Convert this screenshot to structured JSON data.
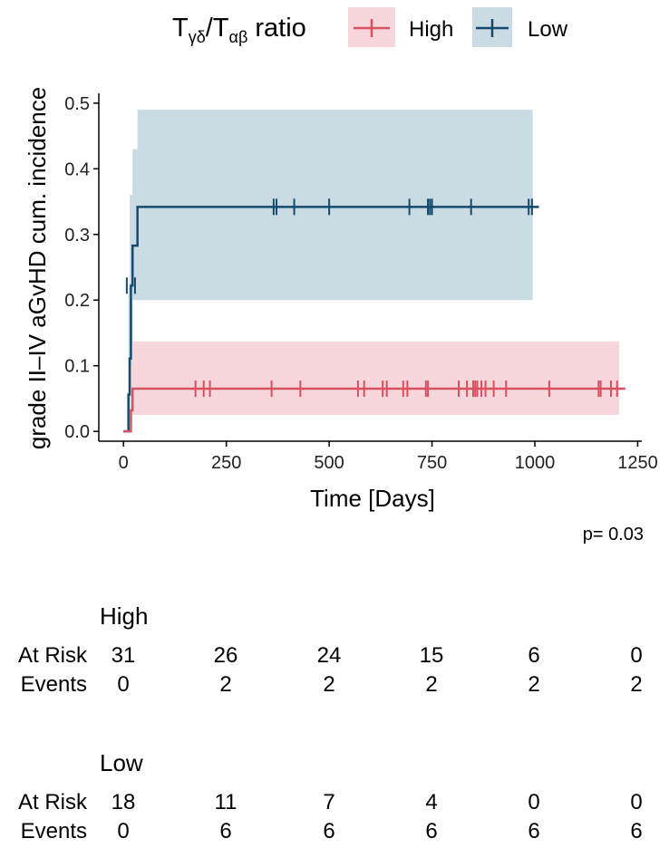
{
  "chart_data": {
    "type": "line",
    "subtype": "cumulative-incidence-step",
    "legend": {
      "title_main": "T",
      "title_sub1": "γδ",
      "title_slash": "/T",
      "title_sub2": "αβ",
      "title_tail": " ratio",
      "placement": "top",
      "entries": [
        "High",
        "Low"
      ]
    },
    "xlabel": "Time [Days]",
    "ylabel": "grade II–IV aGvHD cum. incidence",
    "xlim": [
      -60,
      1260
    ],
    "ylim": [
      -0.015,
      0.515
    ],
    "xticks": [
      0,
      250,
      500,
      750,
      1000,
      1250
    ],
    "yticks": [
      0.0,
      0.1,
      0.2,
      0.3,
      0.4,
      0.5
    ],
    "xtick_labels": [
      "0",
      "250",
      "500",
      "750",
      "1000",
      "1250"
    ],
    "ytick_labels": [
      "0.0",
      "0.1",
      "0.2",
      "0.3",
      "0.4",
      "0.5"
    ],
    "pvalue": "p= 0.03",
    "series": [
      {
        "name": "Low",
        "color": "#134b6e",
        "ci_color": "#cbdbe3",
        "x": [
          0,
          12,
          15,
          18,
          22,
          34,
          1010
        ],
        "y": [
          0.0,
          0.056,
          0.111,
          0.222,
          0.283,
          0.342,
          0.342
        ],
        "ci_x": [
          12,
          15,
          18,
          22,
          34,
          995
        ],
        "ci_lower": [
          0.0,
          0.0,
          0.025,
          0.035,
          0.2,
          0.2
        ],
        "ci_upper": [
          0.22,
          0.36,
          0.36,
          0.43,
          0.49,
          0.49
        ],
        "censor_x": [
          8,
          28,
          365,
          372,
          415,
          500,
          695,
          740,
          745,
          750,
          845,
          985,
          993
        ],
        "censor_y": [
          0.222,
          0.222,
          0.342,
          0.342,
          0.342,
          0.342,
          0.342,
          0.342,
          0.342,
          0.342,
          0.342,
          0.342,
          0.342
        ]
      },
      {
        "name": "High",
        "color": "#d9505f",
        "ci_color": "#f7d7dc",
        "x": [
          0,
          18,
          22,
          1220
        ],
        "y": [
          0.0,
          0.032,
          0.065,
          0.065
        ],
        "ci_x": [
          18,
          22,
          1205
        ],
        "ci_lower": [
          0.0,
          0.025,
          0.025
        ],
        "ci_upper": [
          0.1,
          0.137,
          0.137
        ],
        "censor_x": [
          175,
          195,
          210,
          360,
          430,
          570,
          585,
          630,
          640,
          680,
          690,
          735,
          740,
          815,
          835,
          850,
          855,
          860,
          870,
          880,
          900,
          930,
          1035,
          1155,
          1160,
          1185,
          1200
        ],
        "censor_y": [
          0.065,
          0.065,
          0.065,
          0.065,
          0.065,
          0.065,
          0.065,
          0.065,
          0.065,
          0.065,
          0.065,
          0.065,
          0.065,
          0.065,
          0.065,
          0.065,
          0.065,
          0.065,
          0.065,
          0.065,
          0.065,
          0.065,
          0.065,
          0.065,
          0.065,
          0.065,
          0.065
        ]
      }
    ]
  },
  "risk_table": {
    "row_labels": [
      "At Risk",
      "Events"
    ],
    "groups": [
      {
        "name": "High",
        "at_risk": [
          "31",
          "26",
          "24",
          "15",
          "6",
          "0"
        ],
        "events": [
          "0",
          "2",
          "2",
          "2",
          "2",
          "2"
        ]
      },
      {
        "name": "Low",
        "at_risk": [
          "18",
          "11",
          "7",
          "4",
          "0",
          "0"
        ],
        "events": [
          "0",
          "6",
          "6",
          "6",
          "6",
          "6"
        ]
      }
    ]
  }
}
